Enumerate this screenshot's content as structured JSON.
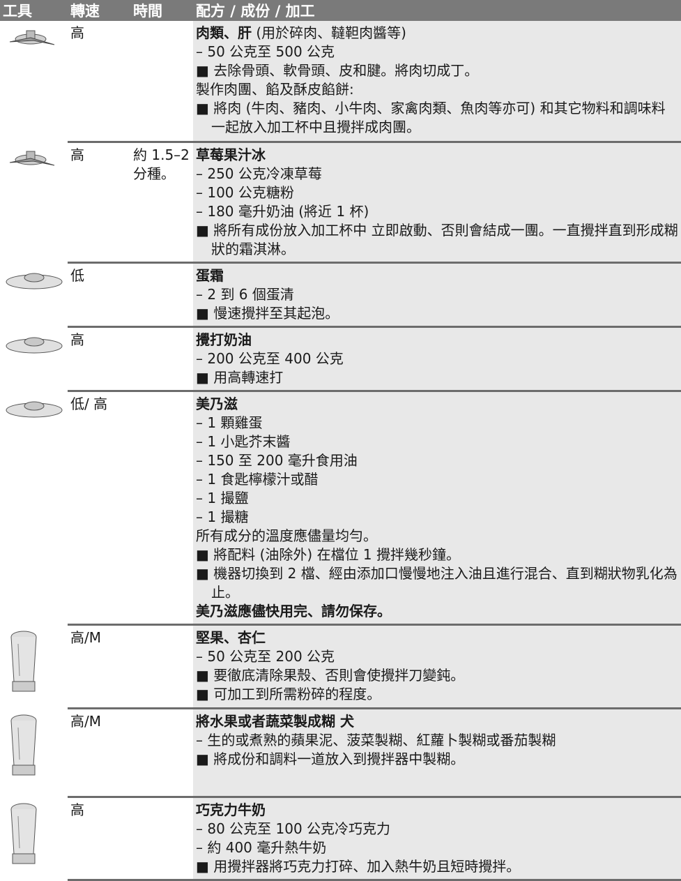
{
  "table": {
    "headers": [
      "工具",
      "轉速",
      "時間",
      "配方 / 成份 / 加工"
    ],
    "rows": [
      {
        "speed": "高",
        "time": "",
        "title": "肉類、肝",
        "title_note": " (用於碎肉、韃靼肉醬等)",
        "lines": [
          "– 50 公克至 500 公克",
          "■ 去除骨頭、軟骨頭、皮和腱。將肉切成丁。",
          "製作肉團、餡及酥皮餡餅:",
          "■ 將肉 (牛肉、豬肉、小牛肉、家禽肉類、魚肉等亦可) 和其它物料和調味料一起放入加工杯中且攪拌成肉團。"
        ]
      },
      {
        "speed": "高",
        "time": "約 1.5–2 分種。",
        "title": "草莓果汁冰",
        "title_note": "",
        "lines": [
          "– 250 公克冷凍草莓",
          "– 100 公克糖粉",
          "– 180 毫升奶油 (將近 1 杯)",
          "■ 將所有成份放入加工杯中 立即啟動、否則會結成一團。一直攪拌直到形成糊狀的霜淇淋。"
        ]
      },
      {
        "speed": "低",
        "time": "",
        "title": "蛋霜",
        "title_note": "",
        "lines": [
          "– 2 到 6 個蛋清",
          "■ 慢速攪拌至其起泡。"
        ]
      },
      {
        "speed": "高",
        "time": "",
        "title": "攪打奶油",
        "title_note": "",
        "lines": [
          "– 200 公克至 400 公克",
          "■ 用高轉速打"
        ]
      },
      {
        "speed": "低/ 高",
        "time": "",
        "title": "美乃滋",
        "title_note": "",
        "lines": [
          "– 1 顆雞蛋",
          "– 1 小匙芥末醬",
          "– 150 至 200 毫升食用油",
          "– 1 食匙檸檬汁或醋",
          "– 1 撮鹽",
          "– 1 撮糖",
          "所有成分的溫度應儘量均勻。",
          "■ 將配料 (油除外) 在檔位 1 攪拌幾秒鐘。",
          "■ 機器切換到 2 檔、經由添加口慢慢地注入油且進行混合、直到糊狀物乳化為止。"
        ],
        "note": "美乃滋應儘快用完、請勿保存。"
      },
      {
        "speed": "高/M",
        "time": "",
        "title": "堅果、杏仁",
        "title_note": "",
        "lines": [
          "– 50 公克至 200 公克",
          "■ 要徹底清除果殼、否則會使攪拌刀變鈍。",
          "■ 可加工到所需粉碎的程度。"
        ]
      },
      {
        "speed": "高/M",
        "time": "",
        "title": "將水果或者蔬菜製成糊 犬",
        "title_note": "",
        "lines": [
          "– 生的或煮熟的蘋果泥、菠菜製糊、紅蘿卜製糊或番茄製糊",
          "■ 將成份和調料一道放入到攪拌器中製糊。"
        ]
      },
      {
        "speed": "高",
        "time": "",
        "title": "巧克力牛奶",
        "title_note": "",
        "lines": [
          "– 80 公克至 100 公克冷巧克力",
          "– 約 400 毫升熱牛奶",
          "■ 用攪拌器將巧克力打碎、加入熱牛奶且短時攪拌。"
        ]
      }
    ]
  }
}
